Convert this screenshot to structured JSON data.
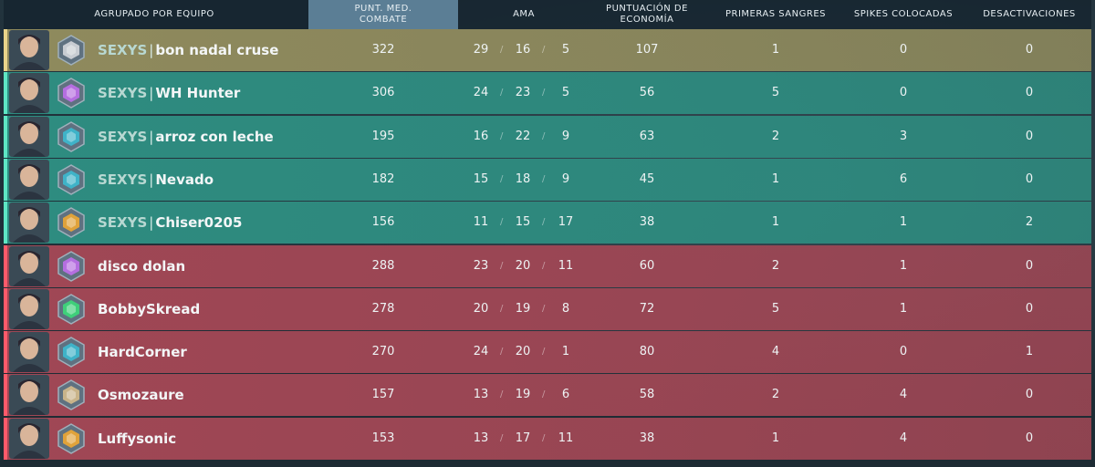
{
  "header": {
    "team": "AGRUPADO POR EQUIPO",
    "acs_line1": "PUNT. MED.",
    "acs_line2": "COMBATE",
    "kda": "AMA",
    "econ_line1": "PUNTUACIÓN DE",
    "econ_line2": "ECONOMÍA",
    "first_bloods": "PRIMERAS SANGRES",
    "plants": "SPIKES COLOCADAS",
    "defuses": "DESACTIVACIONES"
  },
  "colors": {
    "self_row": "#8f8a5d",
    "ally_row": "#2e8c80",
    "enemy_row": "#a04755",
    "self_stripe": "#e9d48a",
    "ally_stripe": "#5ee6c4",
    "enemy_stripe": "#ff5a6a"
  },
  "players": [
    {
      "team": "self",
      "tag": "SEXYS",
      "name": "bon nadal cruse",
      "acs": "322",
      "k": "29",
      "d": "16",
      "a": "5",
      "econ": "107",
      "fb": "1",
      "pl": "0",
      "df": "0",
      "agent": "agent-portrait-icon",
      "rank_color": "#c8ccd2",
      "rank": "silver-rank-icon"
    },
    {
      "team": "ally",
      "tag": "SEXYS",
      "name": "WH Hunter",
      "acs": "306",
      "k": "24",
      "d": "23",
      "a": "5",
      "econ": "56",
      "fb": "5",
      "pl": "0",
      "df": "0",
      "agent": "agent-portrait-icon",
      "rank_color": "#b56ee0",
      "rank": "purple-rank-icon"
    },
    {
      "team": "ally",
      "tag": "SEXYS",
      "name": "arroz con leche",
      "acs": "195",
      "k": "16",
      "d": "22",
      "a": "9",
      "econ": "63",
      "fb": "2",
      "pl": "3",
      "df": "0",
      "agent": "agent-portrait-icon",
      "rank_color": "#3fb3c8",
      "rank": "cyan-rank-icon"
    },
    {
      "team": "ally",
      "tag": "SEXYS",
      "name": "Nevado",
      "acs": "182",
      "k": "15",
      "d": "18",
      "a": "9",
      "econ": "45",
      "fb": "1",
      "pl": "6",
      "df": "0",
      "agent": "agent-portrait-icon",
      "rank_color": "#3fb3c8",
      "rank": "cyan-rank-icon"
    },
    {
      "team": "ally",
      "tag": "SEXYS",
      "name": "Chiser0205",
      "acs": "156",
      "k": "11",
      "d": "15",
      "a": "17",
      "econ": "38",
      "fb": "1",
      "pl": "1",
      "df": "2",
      "agent": "agent-portrait-icon",
      "rank_color": "#e0a23a",
      "rank": "gold-rank-icon"
    },
    {
      "team": "enemy",
      "tag": "",
      "name": "disco dolan",
      "acs": "288",
      "k": "23",
      "d": "20",
      "a": "11",
      "econ": "60",
      "fb": "2",
      "pl": "1",
      "df": "0",
      "agent": "agent-portrait-icon",
      "rank_color": "#b56ee0",
      "rank": "purple-rank-icon"
    },
    {
      "team": "enemy",
      "tag": "",
      "name": "BobbySkread",
      "acs": "278",
      "k": "20",
      "d": "19",
      "a": "8",
      "econ": "72",
      "fb": "5",
      "pl": "1",
      "df": "0",
      "agent": "agent-portrait-icon",
      "rank_color": "#3fcf7a",
      "rank": "green-rank-icon"
    },
    {
      "team": "enemy",
      "tag": "",
      "name": "HardCorner",
      "acs": "270",
      "k": "24",
      "d": "20",
      "a": "1",
      "econ": "80",
      "fb": "4",
      "pl": "0",
      "df": "1",
      "agent": "agent-portrait-icon",
      "rank_color": "#3fb3c8",
      "rank": "cyan-rank-icon"
    },
    {
      "team": "enemy",
      "tag": "",
      "name": "Osmozaure",
      "acs": "157",
      "k": "13",
      "d": "19",
      "a": "6",
      "econ": "58",
      "fb": "2",
      "pl": "4",
      "df": "0",
      "agent": "agent-portrait-icon",
      "rank_color": "#c9b48a",
      "rank": "bronze-rank-icon"
    },
    {
      "team": "enemy",
      "tag": "",
      "name": "Luffysonic",
      "acs": "153",
      "k": "13",
      "d": "17",
      "a": "11",
      "econ": "38",
      "fb": "1",
      "pl": "4",
      "df": "0",
      "agent": "agent-portrait-icon",
      "rank_color": "#e0a23a",
      "rank": "gold-rank-icon"
    }
  ]
}
